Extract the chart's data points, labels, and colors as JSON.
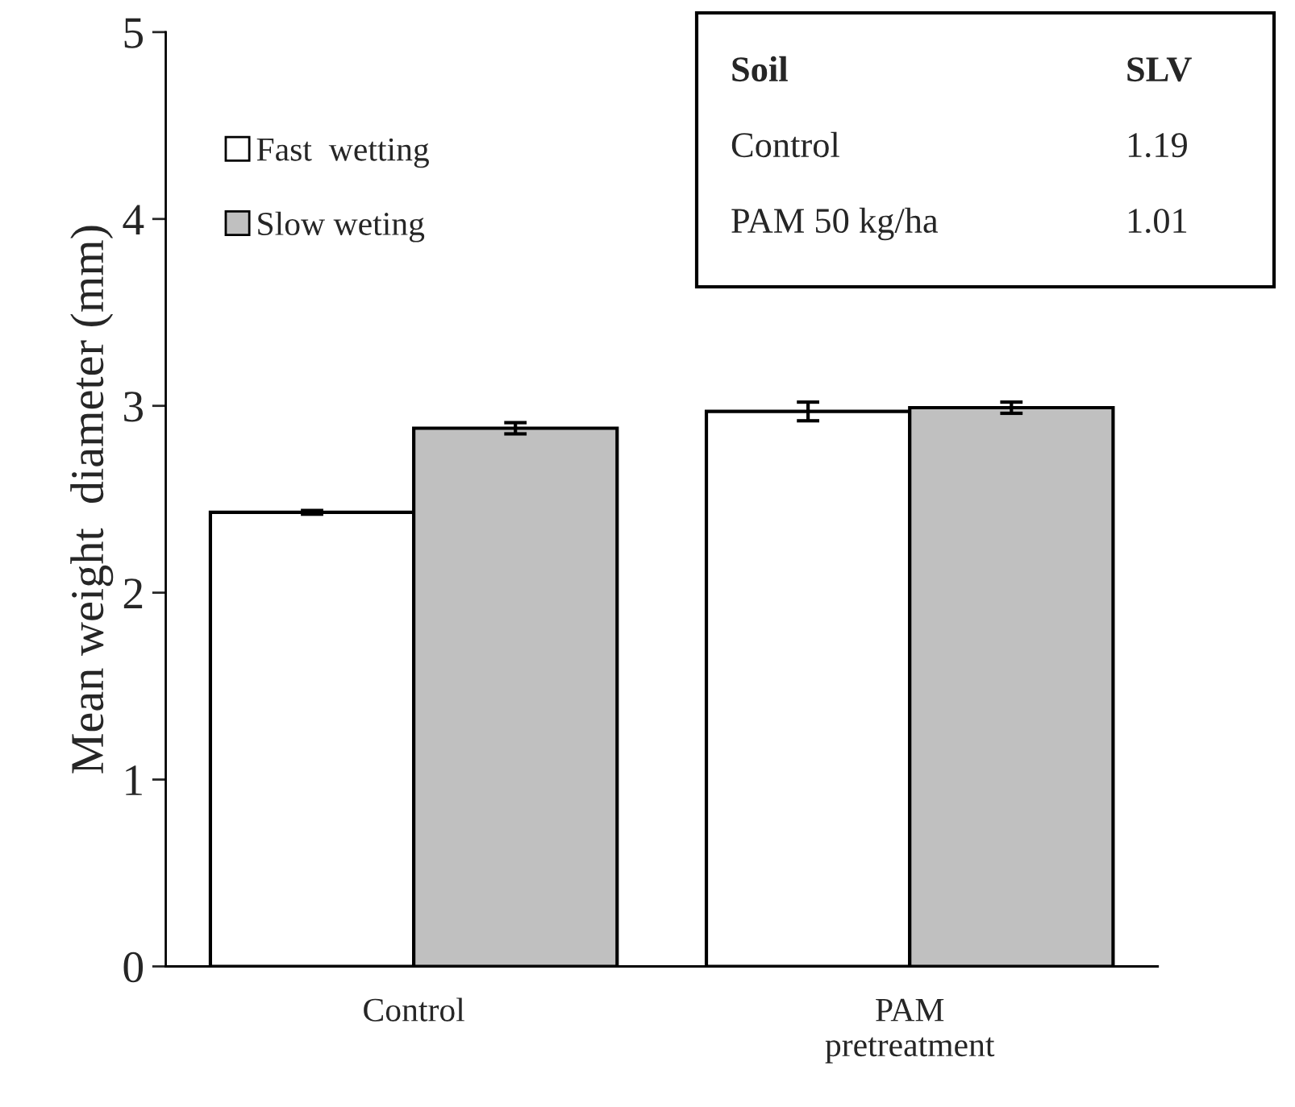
{
  "chart_data": {
    "type": "bar",
    "ylabel": "Mean weight  diameter (mm)",
    "categories": [
      "Control",
      "PAM\npretreatment"
    ],
    "series": [
      {
        "name": "Fast  wetting",
        "color": "#ffffff",
        "values": [
          2.43,
          2.97
        ],
        "errors": [
          0.01,
          0.05
        ]
      },
      {
        "name": "Slow weting",
        "color": "#c0c0c0",
        "values": [
          2.88,
          2.99
        ],
        "errors": [
          0.03,
          0.03
        ]
      }
    ],
    "ylim": [
      0,
      5
    ],
    "yticks": [
      0,
      1,
      2,
      3,
      4,
      5
    ],
    "grid": false,
    "legend": "top left",
    "annotations": [
      "Soil",
      "SLV",
      "Control",
      "1.19",
      "PAM 50 kg/ha",
      "1.01"
    ]
  }
}
